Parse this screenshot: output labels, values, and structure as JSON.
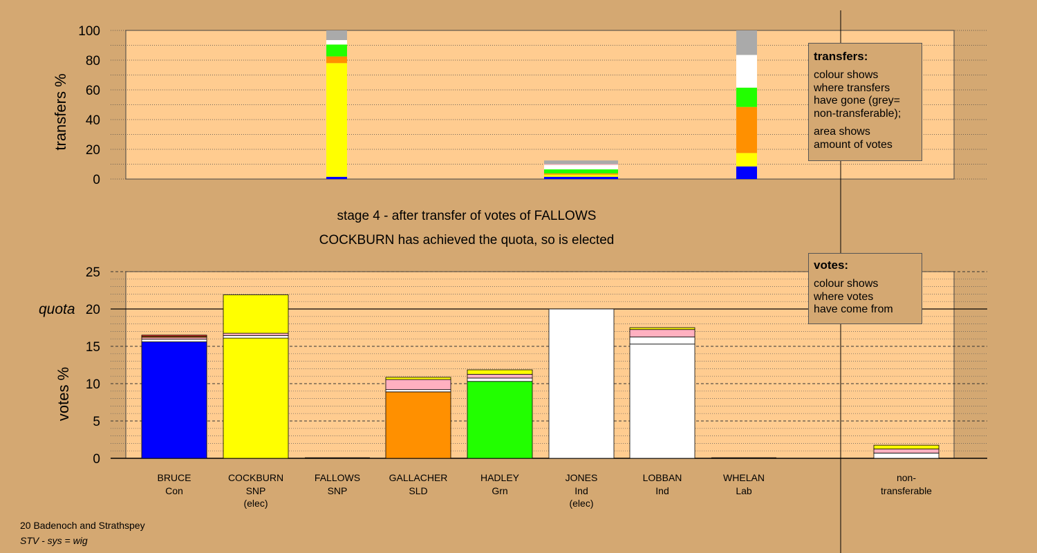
{
  "chart_data": [
    {
      "type": "bar",
      "stacked": true,
      "ylabel": "transfers %",
      "ylim": [
        0,
        100
      ],
      "yticks": [
        0,
        20,
        40,
        60,
        80,
        100
      ],
      "grid": "dotted horizontal",
      "colors": {
        "Con": "#0000ff",
        "SNP": "#ffff00",
        "SLD": "#ff9000",
        "Grn": "#22ff00",
        "Ind": "#ffffff",
        "Ind2": "#ffb0c0",
        "Lab": "#ff3030",
        "nontransferable": "#aaaaaa"
      },
      "transfers": [
        {
          "candidate": "COCKBURN",
          "segments": [
            {
              "party": "Con",
              "value": 1.5
            },
            {
              "party": "SNP",
              "value": 76.5
            },
            {
              "party": "SLD",
              "value": 4.5
            },
            {
              "party": "Grn",
              "value": 8
            },
            {
              "party": "Ind",
              "value": 3
            },
            {
              "party": "nontransferable",
              "value": 6.5
            }
          ]
        },
        {
          "candidate": "non-transferable",
          "segments": [
            {
              "party": "Con",
              "value": 8.5
            },
            {
              "party": "SNP",
              "value": 9
            },
            {
              "party": "SLD",
              "value": 31
            },
            {
              "party": "Grn",
              "value": 13
            },
            {
              "party": "Ind",
              "value": 22
            },
            {
              "party": "nontransferable",
              "value": 16.5
            }
          ]
        }
      ],
      "transfers_wide": {
        "from": "JONES",
        "to": "LOBBAN",
        "segments": [
          {
            "party": "Con",
            "value": 1.5
          },
          {
            "party": "SNP",
            "value": 1.5
          },
          {
            "party": "SLD",
            "value": 0.8
          },
          {
            "party": "Grn",
            "value": 2.7
          },
          {
            "party": "Ind",
            "value": 3
          },
          {
            "party": "Ind2",
            "value": 0.5
          },
          {
            "party": "nontransferable",
            "value": 2.5
          }
        ]
      }
    },
    {
      "type": "bar",
      "stacked": true,
      "ylabel": "votes %",
      "ylim": [
        0,
        25
      ],
      "yticks": [
        0,
        5,
        10,
        15,
        20,
        25
      ],
      "quota": 20,
      "quota_label": "quota",
      "categories": [
        "BRUCE",
        "COCKBURN",
        "FALLOWS",
        "GALLACHER",
        "HADLEY",
        "JONES",
        "LOBBAN",
        "WHELAN",
        "non-transferable"
      ],
      "bars": [
        {
          "name": "BRUCE",
          "party": "Con",
          "note": "",
          "segments": [
            {
              "party": "Con",
              "value": 15.6
            },
            {
              "party": "Ind",
              "value": 0.35
            },
            {
              "party": "Ind2",
              "value": 0.25
            },
            {
              "party": "SLD",
              "value": 0.15
            },
            {
              "party": "Lab",
              "value": 0.15
            }
          ]
        },
        {
          "name": "COCKBURN",
          "party": "SNP",
          "note": "(elec)",
          "segments": [
            {
              "party": "SNP",
              "value": 16.1
            },
            {
              "party": "Ind",
              "value": 0.35
            },
            {
              "party": "Ind2",
              "value": 0.3
            },
            {
              "party": "SNP",
              "value": 5.15
            }
          ]
        },
        {
          "name": "FALLOWS",
          "party": "SNP",
          "note": "",
          "segments": []
        },
        {
          "name": "GALLACHER",
          "party": "SLD",
          "note": "",
          "segments": [
            {
              "party": "SLD",
              "value": 8.9
            },
            {
              "party": "Ind",
              "value": 0.3
            },
            {
              "party": "Ind2",
              "value": 1.35
            },
            {
              "party": "SNP",
              "value": 0.3
            }
          ]
        },
        {
          "name": "HADLEY",
          "party": "Grn",
          "note": "",
          "segments": [
            {
              "party": "Grn",
              "value": 10.3
            },
            {
              "party": "Ind",
              "value": 0.45
            },
            {
              "party": "Ind2",
              "value": 0.5
            },
            {
              "party": "SNP",
              "value": 0.6
            }
          ]
        },
        {
          "name": "JONES",
          "party": "Ind",
          "note": "(elec)",
          "segments": [
            {
              "party": "Ind",
              "value": 20
            }
          ]
        },
        {
          "name": "LOBBAN",
          "party": "Ind",
          "note": "",
          "segments": [
            {
              "party": "Ind",
              "value": 15.3
            },
            {
              "party": "Ind",
              "value": 0.95
            },
            {
              "party": "Ind2",
              "value": 1.0
            },
            {
              "party": "SNP",
              "value": 0.25
            }
          ]
        },
        {
          "name": "WHELAN",
          "party": "Lab",
          "note": "",
          "segments": []
        },
        {
          "name": "non-",
          "party": "transferable",
          "note": "",
          "segments": [
            {
              "party": "Ind",
              "value": 0.7
            },
            {
              "party": "Ind2",
              "value": 0.55
            },
            {
              "party": "SNP",
              "value": 0.5
            }
          ]
        }
      ]
    }
  ],
  "stage_title": "stage 4 - after transfer of votes of FALLOWS",
  "stage_subtitle": "COCKBURN has achieved the quota, so is elected",
  "legend_transfers": {
    "title": "transfers:",
    "lines1": [
      "colour shows",
      "where transfers",
      "have gone (grey=",
      "non-transferable);"
    ],
    "lines2": [
      "area shows",
      "amount of votes"
    ]
  },
  "legend_votes": {
    "title": "votes:",
    "lines": [
      "colour shows",
      "where votes",
      "have come from"
    ]
  },
  "footer": {
    "constituency": "20 Badenoch and Strathspey",
    "system": "STV - sys = wig"
  }
}
